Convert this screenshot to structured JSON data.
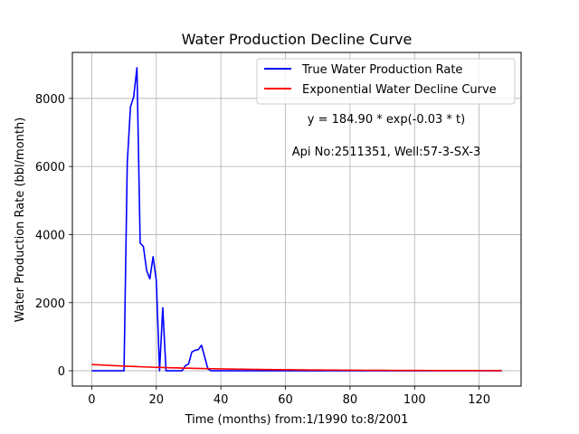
{
  "chart_data": {
    "type": "line",
    "title": "Water Production Decline Curve",
    "xlabel": "Time (months) from:1/1990 to:8/2001",
    "ylabel": "Water Production Rate (bbl/month)",
    "xlim": [
      -6,
      133
    ],
    "ylim": [
      -450,
      9350
    ],
    "grid": true,
    "legend_position": "top-right",
    "xticks": [
      0,
      20,
      40,
      60,
      80,
      100,
      120
    ],
    "yticks": [
      0,
      2000,
      4000,
      6000,
      8000
    ],
    "annotations": [
      "y = 184.90 * exp(-0.03 * t)",
      "Api No:2511351, Well:57-3-SX-3"
    ],
    "series": [
      {
        "name": "True Water Production Rate",
        "color": "#0000ff",
        "x": [
          0,
          1,
          2,
          3,
          4,
          5,
          6,
          7,
          8,
          9,
          10,
          11,
          12,
          13,
          14,
          15,
          16,
          17,
          18,
          19,
          20,
          21,
          22,
          23,
          24,
          25,
          26,
          27,
          28,
          29,
          30,
          31,
          32,
          33,
          34,
          35,
          36,
          37,
          38,
          39,
          40,
          127
        ],
        "y": [
          0,
          0,
          0,
          0,
          0,
          0,
          0,
          0,
          0,
          0,
          0,
          6100,
          7750,
          8050,
          8900,
          3750,
          3650,
          2950,
          2700,
          3350,
          2650,
          0,
          1850,
          0,
          0,
          0,
          0,
          0,
          0,
          150,
          200,
          550,
          600,
          620,
          750,
          400,
          50,
          0,
          0,
          0,
          0,
          0
        ]
      },
      {
        "name": "Exponential Water Decline Curve",
        "color": "#ff0000",
        "equation": {
          "a": 184.9,
          "b": 0.03
        },
        "x_range": [
          0,
          127
        ]
      }
    ]
  }
}
